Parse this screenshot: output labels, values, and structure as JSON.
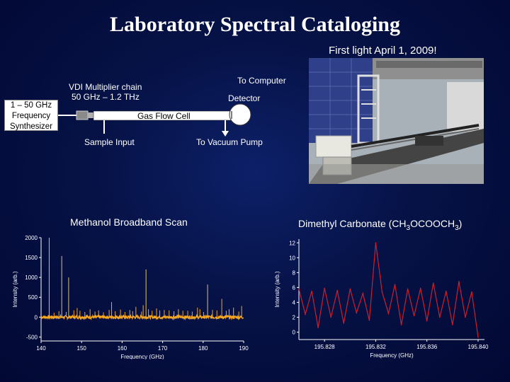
{
  "slide": {
    "title": "Laboratory Spectral Cataloging",
    "subtitle": "First light April 1, 2009!"
  },
  "diagram": {
    "synthesizer": [
      "1 – 50 GHz",
      "Frequency",
      "Synthesizer"
    ],
    "multiplier": [
      "VDI Multiplier chain",
      "50 GHz – 1.2 THz"
    ],
    "to_computer": "To Computer",
    "detector": "Detector",
    "gas_flow_cell": "Gas Flow Cell",
    "sample_input": "Sample Input",
    "vacuum_pump": "To Vacuum Pump"
  },
  "colors": {
    "bg": "#061246",
    "methanol": "#f5a623",
    "dmc": "#cc1f2b",
    "axes": "#ffffff"
  },
  "chart_data": [
    {
      "type": "line",
      "title": "Methanol Broadband Scan",
      "xlabel": "Frequency (GHz)",
      "ylabel": "Intensity (arb.)",
      "xlim": [
        140,
        190
      ],
      "ylim": [
        -600,
        2000
      ],
      "xticks": [
        140,
        150,
        160,
        170,
        180,
        190
      ],
      "yticks": [
        -500,
        0,
        500,
        1000,
        1500,
        2000
      ],
      "yticklabels": [
        "-500",
        "0",
        "500",
        "1000",
        "1500",
        "2000"
      ],
      "color": "#f5a623",
      "baseline_noise": 40,
      "peaks": [
        {
          "x": 142.0,
          "y": 2000
        },
        {
          "x": 143.2,
          "y": 110
        },
        {
          "x": 144.4,
          "y": 150
        },
        {
          "x": 145.1,
          "y": 1540
        },
        {
          "x": 146.2,
          "y": 130
        },
        {
          "x": 146.8,
          "y": 1000
        },
        {
          "x": 148.1,
          "y": 170
        },
        {
          "x": 148.9,
          "y": 230
        },
        {
          "x": 149.6,
          "y": 160
        },
        {
          "x": 150.8,
          "y": 130
        },
        {
          "x": 152.1,
          "y": 200
        },
        {
          "x": 153.3,
          "y": 140
        },
        {
          "x": 154.2,
          "y": 170
        },
        {
          "x": 155.4,
          "y": 120
        },
        {
          "x": 156.8,
          "y": 180
        },
        {
          "x": 157.4,
          "y": 380
        },
        {
          "x": 158.3,
          "y": 150
        },
        {
          "x": 159.6,
          "y": 190
        },
        {
          "x": 160.7,
          "y": 130
        },
        {
          "x": 161.9,
          "y": 180
        },
        {
          "x": 162.6,
          "y": 150
        },
        {
          "x": 163.4,
          "y": 260
        },
        {
          "x": 164.8,
          "y": 140
        },
        {
          "x": 165.2,
          "y": 300
        },
        {
          "x": 165.9,
          "y": 1200
        },
        {
          "x": 166.5,
          "y": 200
        },
        {
          "x": 167.4,
          "y": 160
        },
        {
          "x": 168.5,
          "y": 220
        },
        {
          "x": 169.3,
          "y": 170
        },
        {
          "x": 170.4,
          "y": 180
        },
        {
          "x": 171.6,
          "y": 170
        },
        {
          "x": 172.8,
          "y": 150
        },
        {
          "x": 173.9,
          "y": 200
        },
        {
          "x": 175.0,
          "y": 160
        },
        {
          "x": 176.2,
          "y": 160
        },
        {
          "x": 177.3,
          "y": 140
        },
        {
          "x": 178.6,
          "y": 240
        },
        {
          "x": 179.2,
          "y": 200
        },
        {
          "x": 180.1,
          "y": 130
        },
        {
          "x": 181.1,
          "y": 820
        },
        {
          "x": 182.3,
          "y": 180
        },
        {
          "x": 183.4,
          "y": 170
        },
        {
          "x": 184.6,
          "y": 460
        },
        {
          "x": 185.7,
          "y": 160
        },
        {
          "x": 186.4,
          "y": 200
        },
        {
          "x": 187.5,
          "y": 240
        },
        {
          "x": 188.8,
          "y": 140
        },
        {
          "x": 189.5,
          "y": 280
        }
      ]
    },
    {
      "type": "line",
      "title": "Dimethyl Carbonate (CH3OCOOCH3)",
      "xlabel": "Frequency (GHz)",
      "ylabel": "Intensity (arb.)",
      "xlim": [
        195.826,
        195.8405
      ],
      "ylim": [
        -1,
        12.5
      ],
      "xticks": [
        195.828,
        195.832,
        195.836,
        195.84
      ],
      "xticklabels": [
        "195.828",
        "195.832",
        "195.836",
        "195.840"
      ],
      "yticks": [
        0,
        2,
        4,
        6,
        8,
        10,
        12
      ],
      "color": "#cc1f2b",
      "x": [
        195.826,
        195.8265,
        195.827,
        195.8275,
        195.828,
        195.8285,
        195.829,
        195.8295,
        195.83,
        195.8305,
        195.831,
        195.8315,
        195.832,
        195.8325,
        195.833,
        195.8335,
        195.834,
        195.8345,
        195.835,
        195.8355,
        195.836,
        195.8365,
        195.837,
        195.8375,
        195.838,
        195.8385,
        195.839,
        195.8395,
        195.84
      ],
      "y": [
        5.8,
        2.4,
        5.5,
        0.6,
        5.9,
        2.0,
        5.6,
        1.2,
        5.8,
        2.6,
        5.2,
        1.6,
        12.0,
        5.4,
        2.5,
        6.4,
        1.0,
        5.8,
        2.2,
        5.9,
        1.5,
        6.6,
        2.0,
        5.5,
        1.0,
        6.8,
        2.0,
        5.4,
        -0.7
      ]
    }
  ]
}
